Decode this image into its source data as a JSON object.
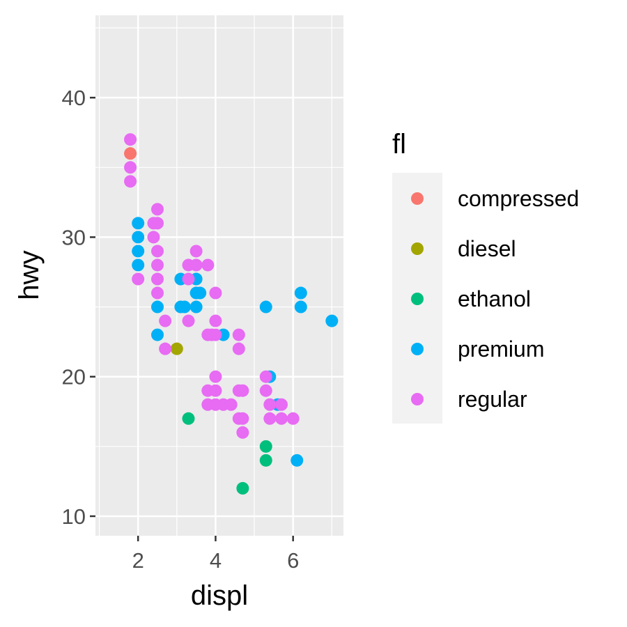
{
  "chart_data": {
    "type": "scatter",
    "xlabel": "displ",
    "ylabel": "hwy",
    "xlim": [
      0.9,
      7.3
    ],
    "ylim": [
      8.6,
      45.9
    ],
    "x_ticks": [
      2,
      4,
      6
    ],
    "y_ticks": [
      10,
      20,
      30,
      40
    ],
    "grid": true,
    "legend_title": "fl",
    "legend_position": "right",
    "series": [
      {
        "name": "compressed",
        "color": "#F8766D",
        "points": [
          [
            1.8,
            36
          ]
        ]
      },
      {
        "name": "diesel",
        "color": "#A3A500",
        "points": [
          [
            3.0,
            22
          ]
        ]
      },
      {
        "name": "ethanol",
        "color": "#00BF7D",
        "points": [
          [
            3.3,
            17
          ],
          [
            4.7,
            12
          ],
          [
            5.3,
            15
          ],
          [
            5.3,
            14
          ]
        ]
      },
      {
        "name": "premium",
        "color": "#00B0F6",
        "points": [
          [
            2.0,
            31
          ],
          [
            2.0,
            30
          ],
          [
            2.0,
            29
          ],
          [
            2.0,
            28
          ],
          [
            2.5,
            25
          ],
          [
            2.5,
            23
          ],
          [
            3.1,
            27
          ],
          [
            3.1,
            25
          ],
          [
            3.2,
            25
          ],
          [
            3.5,
            27
          ],
          [
            3.5,
            26
          ],
          [
            3.5,
            25
          ],
          [
            3.6,
            26
          ],
          [
            4.2,
            23
          ],
          [
            5.3,
            25
          ],
          [
            5.4,
            20
          ],
          [
            5.6,
            18
          ],
          [
            6.1,
            14
          ],
          [
            6.2,
            26
          ],
          [
            6.2,
            25
          ],
          [
            7.0,
            24
          ]
        ]
      },
      {
        "name": "regular",
        "color": "#E76BF3",
        "points": [
          [
            1.8,
            37
          ],
          [
            1.8,
            35
          ],
          [
            1.8,
            34
          ],
          [
            2.0,
            27
          ],
          [
            2.4,
            31
          ],
          [
            2.4,
            30
          ],
          [
            2.5,
            32
          ],
          [
            2.5,
            31
          ],
          [
            2.5,
            29
          ],
          [
            2.5,
            28
          ],
          [
            2.5,
            27
          ],
          [
            2.5,
            26
          ],
          [
            2.7,
            24
          ],
          [
            2.7,
            22
          ],
          [
            3.3,
            28
          ],
          [
            3.3,
            27
          ],
          [
            3.3,
            24
          ],
          [
            3.5,
            29
          ],
          [
            3.5,
            28
          ],
          [
            3.8,
            28
          ],
          [
            3.8,
            23
          ],
          [
            3.8,
            19
          ],
          [
            3.8,
            18
          ],
          [
            3.9,
            23
          ],
          [
            4.0,
            26
          ],
          [
            4.0,
            24
          ],
          [
            4.0,
            23
          ],
          [
            4.0,
            20
          ],
          [
            4.0,
            19
          ],
          [
            4.0,
            18
          ],
          [
            4.2,
            18
          ],
          [
            4.4,
            18
          ],
          [
            4.6,
            23
          ],
          [
            4.6,
            22
          ],
          [
            4.6,
            19
          ],
          [
            4.6,
            17
          ],
          [
            4.7,
            19
          ],
          [
            4.7,
            17
          ],
          [
            4.7,
            16
          ],
          [
            5.3,
            20
          ],
          [
            5.3,
            19
          ],
          [
            5.4,
            18
          ],
          [
            5.4,
            17
          ],
          [
            5.7,
            18
          ],
          [
            5.7,
            17
          ],
          [
            6.0,
            17
          ]
        ]
      }
    ]
  }
}
